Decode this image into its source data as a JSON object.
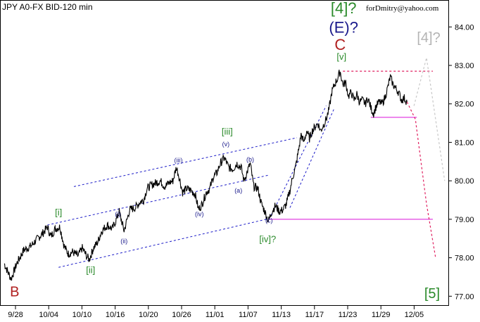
{
  "chart_data": {
    "type": "line",
    "title": "JPY A0-FX BID-120 min",
    "copyright": "forDmitry@yahoo.com",
    "xlabel": "",
    "ylabel": "",
    "ylim": [
      76.75,
      84.7
    ],
    "x_ticks": [
      "9/28",
      "10/04",
      "10/10",
      "10/16",
      "10/20",
      "10/26",
      "11/01",
      "11/07",
      "11/13",
      "11/17",
      "11/23",
      "11/29",
      "12/05"
    ],
    "y_ticks": [
      "77.00",
      "78.00",
      "79.00",
      "80.00",
      "81.00",
      "82.00",
      "83.00",
      "84.00"
    ],
    "x_range_bars": [
      0,
      610
    ],
    "grid": false,
    "colors": {
      "price": "#000000",
      "channel": "#1c1cc8",
      "support": "#e040e0",
      "forecast_red": "#e02060",
      "forecast_gray": "#c8c8c8",
      "green_label": "#2a8a2a",
      "navy_label": "#1a1a8c",
      "red_label": "#b02020",
      "gray_label": "#b4b4b4"
    },
    "series": [
      {
        "values_key": "price_anchors",
        "anchors": [
          [
            0,
            77.85
          ],
          [
            6,
            77.6
          ],
          [
            10,
            77.45
          ],
          [
            18,
            77.85
          ],
          [
            28,
            78.2
          ],
          [
            38,
            78.3
          ],
          [
            48,
            78.5
          ],
          [
            56,
            78.65
          ],
          [
            62,
            78.8
          ],
          [
            67,
            78.55
          ],
          [
            73,
            78.75
          ],
          [
            80,
            78.8
          ],
          [
            86,
            78.3
          ],
          [
            92,
            78.1
          ],
          [
            98,
            78.15
          ],
          [
            106,
            78.05
          ],
          [
            112,
            78.25
          ],
          [
            118,
            78.05
          ],
          [
            122,
            77.95
          ],
          [
            128,
            78.25
          ],
          [
            134,
            78.4
          ],
          [
            140,
            78.7
          ],
          [
            148,
            78.85
          ],
          [
            155,
            78.75
          ],
          [
            160,
            78.95
          ],
          [
            165,
            79.2
          ],
          [
            172,
            78.7
          ],
          [
            180,
            79.25
          ],
          [
            188,
            79.3
          ],
          [
            195,
            79.45
          ],
          [
            200,
            79.5
          ],
          [
            205,
            79.8
          ],
          [
            212,
            79.9
          ],
          [
            218,
            79.95
          ],
          [
            224,
            80.0
          ],
          [
            230,
            79.85
          ],
          [
            237,
            79.95
          ],
          [
            242,
            80.0
          ],
          [
            247,
            80.35
          ],
          [
            251,
            80.1
          ],
          [
            256,
            79.7
          ],
          [
            262,
            79.8
          ],
          [
            268,
            79.75
          ],
          [
            274,
            79.65
          ],
          [
            279,
            79.25
          ],
          [
            284,
            79.4
          ],
          [
            290,
            79.7
          ],
          [
            295,
            79.8
          ],
          [
            300,
            80.1
          ],
          [
            305,
            80.2
          ],
          [
            310,
            80.45
          ],
          [
            316,
            80.6
          ],
          [
            322,
            80.35
          ],
          [
            328,
            80.3
          ],
          [
            334,
            80.45
          ],
          [
            340,
            80.35
          ],
          [
            344,
            80.0
          ],
          [
            348,
            80.2
          ],
          [
            353,
            80.45
          ],
          [
            358,
            79.85
          ],
          [
            364,
            79.8
          ],
          [
            369,
            79.4
          ],
          [
            374,
            79.2
          ],
          [
            379,
            78.95
          ],
          [
            384,
            79.2
          ],
          [
            389,
            79.35
          ],
          [
            395,
            79.2
          ],
          [
            400,
            79.25
          ],
          [
            405,
            79.4
          ],
          [
            410,
            79.75
          ],
          [
            414,
            80.1
          ],
          [
            418,
            80.35
          ],
          [
            422,
            80.75
          ],
          [
            426,
            81.2
          ],
          [
            430,
            81.0
          ],
          [
            434,
            81.3
          ],
          [
            438,
            81.1
          ],
          [
            442,
            81.3
          ],
          [
            446,
            81.4
          ],
          [
            450,
            81.5
          ],
          [
            454,
            81.3
          ],
          [
            458,
            81.45
          ],
          [
            462,
            81.6
          ],
          [
            466,
            81.85
          ],
          [
            470,
            82.3
          ],
          [
            474,
            82.5
          ],
          [
            478,
            82.65
          ],
          [
            482,
            82.85
          ],
          [
            486,
            82.5
          ],
          [
            490,
            82.55
          ],
          [
            494,
            82.2
          ],
          [
            498,
            82.3
          ],
          [
            502,
            82.1
          ],
          [
            506,
            82.25
          ],
          [
            510,
            82.05
          ],
          [
            514,
            82.1
          ],
          [
            518,
            82.0
          ],
          [
            522,
            82.15
          ],
          [
            526,
            81.9
          ],
          [
            530,
            81.75
          ],
          [
            534,
            81.95
          ],
          [
            538,
            82.05
          ],
          [
            542,
            82.0
          ],
          [
            546,
            82.15
          ],
          [
            550,
            82.4
          ],
          [
            554,
            82.7
          ],
          [
            558,
            82.5
          ],
          [
            562,
            82.4
          ],
          [
            566,
            82.3
          ],
          [
            570,
            82.1
          ],
          [
            574,
            82.15
          ],
          [
            578,
            82.05
          ]
        ]
      }
    ],
    "wave_labels": [
      {
        "text": "B",
        "bar": 15,
        "price": 77.0,
        "role": "major"
      },
      {
        "text": "[i]",
        "bar": 78,
        "price": 79.1,
        "role": "minor"
      },
      {
        "text": "[ii]",
        "bar": 124,
        "price": 77.6,
        "role": "minor"
      },
      {
        "text": "[iii]",
        "bar": 320,
        "price": 81.2,
        "role": "minor"
      },
      {
        "text": "[iv]?",
        "bar": 378,
        "price": 78.4,
        "role": "minor"
      },
      {
        "text": "[v]",
        "bar": 484,
        "price": 83.15,
        "role": "minor"
      },
      {
        "text": "[4]?",
        "bar": 487,
        "price": 84.35,
        "role": "top-green"
      },
      {
        "text": "(E)?",
        "bar": 487,
        "price": 83.85,
        "role": "top-navy"
      },
      {
        "text": "C",
        "bar": 482,
        "price": 83.4,
        "role": "top-red"
      },
      {
        "text": "[4]?",
        "bar": 609,
        "price": 83.6,
        "role": "top-gray"
      },
      {
        "text": "[5]",
        "bar": 614,
        "price": 76.95,
        "role": "end-green"
      },
      {
        "text": "i",
        "bar": 163,
        "price": 79.08,
        "role": "circle"
      },
      {
        "text": "ii",
        "bar": 172,
        "price": 78.38,
        "role": "circle"
      },
      {
        "text": "iii",
        "bar": 250,
        "price": 80.48,
        "role": "circle"
      },
      {
        "text": "iv",
        "bar": 280,
        "price": 79.08,
        "role": "circle"
      },
      {
        "text": "v",
        "bar": 318,
        "price": 80.9,
        "role": "circle"
      },
      {
        "text": "a",
        "bar": 336,
        "price": 79.69,
        "role": "circle"
      },
      {
        "text": "b",
        "bar": 353,
        "price": 80.5,
        "role": "circle"
      },
      {
        "text": "c",
        "bar": 380,
        "price": 78.92,
        "role": "circle"
      }
    ],
    "channel_lines": [
      {
        "p1": [
          100,
          79.85
        ],
        "p2": [
          420,
          81.12
        ]
      },
      {
        "p1": [
          62,
          78.85
        ],
        "p2": [
          380,
          80.15
        ]
      },
      {
        "p1": [
          78,
          77.75
        ],
        "p2": [
          376,
          79.0
        ]
      },
      {
        "p1": [
          380,
          79.0
        ],
        "p2": [
          462,
          81.95
        ]
      },
      {
        "p1": [
          410,
          79.3
        ],
        "p2": [
          474,
          81.9
        ]
      }
    ],
    "support_lines": [
      {
        "p1": [
          380,
          79.0
        ],
        "p2": [
          615,
          79.0
        ],
        "style": "solid"
      },
      {
        "p1": [
          526,
          81.65
        ],
        "p2": [
          592,
          81.65
        ],
        "style": "solid"
      },
      {
        "p1": [
          486,
          82.85
        ],
        "p2": [
          615,
          82.85
        ],
        "style": "dashed"
      }
    ],
    "forecast_lines": [
      {
        "points": [
          [
            578,
            82.05
          ],
          [
            590,
            81.6
          ],
          [
            606,
            79.4
          ],
          [
            619,
            78.0
          ]
        ],
        "color": "forecast_red"
      },
      {
        "points": [
          [
            588,
            81.95
          ],
          [
            606,
            83.2
          ],
          [
            632,
            80.0
          ]
        ],
        "color": "forecast_gray"
      }
    ]
  }
}
